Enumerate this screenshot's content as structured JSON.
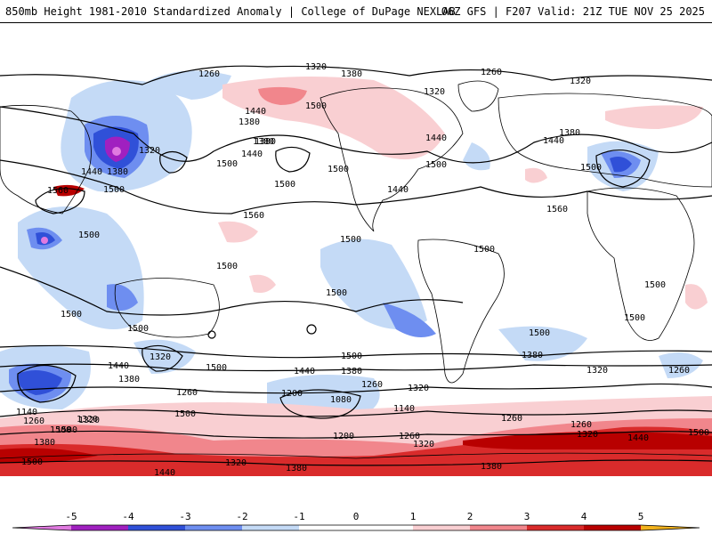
{
  "header": {
    "left": "850mb Height 1981-2010 Standardized Anomaly | College of DuPage NEXLAB",
    "right": "06Z GFS | F207 Valid: 21Z TUE NOV 25 2025"
  },
  "colors": {
    "neg5": "#e07ae0",
    "neg4": "#a020c0",
    "neg3": "#3050d8",
    "neg2": "#6e8ef0",
    "neg1": "#c4daf6",
    "zero": "#ffffff",
    "pos1": "#f9cfd2",
    "pos2": "#f1868c",
    "pos3": "#d92b2b",
    "pos4": "#b80000",
    "pos5": "#f2b21c",
    "contour": "#000000",
    "land": "#000000"
  },
  "legend": {
    "ticks": [
      "-5",
      "-4",
      "-3",
      "-2",
      "-1",
      "0",
      "1",
      "2",
      "3",
      "4",
      "5"
    ]
  },
  "contour_labels": [
    "1320",
    "1380",
    "1260",
    "1260",
    "1320",
    "1440",
    "1380",
    "1500",
    "1380",
    "1440",
    "1500",
    "1440",
    "1320",
    "1380",
    "1500",
    "1440",
    "1320",
    "1380",
    "1500",
    "1500",
    "1560",
    "1500",
    "1380",
    "1440",
    "1560",
    "1560",
    "1500",
    "1500",
    "1500",
    "1500",
    "1500",
    "1500",
    "1500",
    "1500",
    "1500",
    "1500",
    "1500",
    "1500",
    "1440",
    "1380",
    "1320",
    "1320",
    "1500",
    "1380",
    "1440",
    "1260",
    "1320",
    "1200",
    "1080",
    "1260",
    "1140",
    "1260",
    "1380",
    "1320",
    "1260",
    "1140",
    "1260",
    "1320",
    "1380",
    "1500",
    "1500",
    "1200",
    "1260",
    "1320",
    "1320",
    "1380",
    "1380",
    "1440",
    "1260",
    "1320",
    "1440",
    "1500",
    "1500",
    "1440",
    "1500"
  ]
}
